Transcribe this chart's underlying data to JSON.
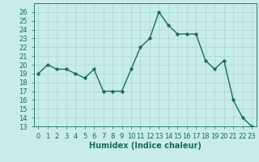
{
  "x": [
    0,
    1,
    2,
    3,
    4,
    5,
    6,
    7,
    8,
    9,
    10,
    11,
    12,
    13,
    14,
    15,
    16,
    17,
    18,
    19,
    20,
    21,
    22,
    23
  ],
  "y": [
    19.0,
    20.0,
    19.5,
    19.5,
    19.0,
    18.5,
    19.5,
    17.0,
    17.0,
    17.0,
    19.5,
    22.0,
    23.0,
    26.0,
    24.5,
    23.5,
    23.5,
    23.5,
    20.5,
    19.5,
    20.5,
    16.0,
    14.0,
    13.0
  ],
  "line_color": "#1a6b5e",
  "marker": "o",
  "markersize": 2.5,
  "linewidth": 1.0,
  "bg_color": "#c8ece8",
  "grid_color": "#a8d8d0",
  "xlabel": "Humidex (Indice chaleur)",
  "ylim": [
    13,
    27
  ],
  "yticks": [
    13,
    14,
    15,
    16,
    17,
    18,
    19,
    20,
    21,
    22,
    23,
    24,
    25,
    26
  ],
  "xticks": [
    0,
    1,
    2,
    3,
    4,
    5,
    6,
    7,
    8,
    9,
    10,
    11,
    12,
    13,
    14,
    15,
    16,
    17,
    18,
    19,
    20,
    21,
    22,
    23
  ],
  "xlabel_fontsize": 7,
  "tick_fontsize": 6,
  "tick_color": "#1a6b5e",
  "spine_color": "#1a6b5e"
}
